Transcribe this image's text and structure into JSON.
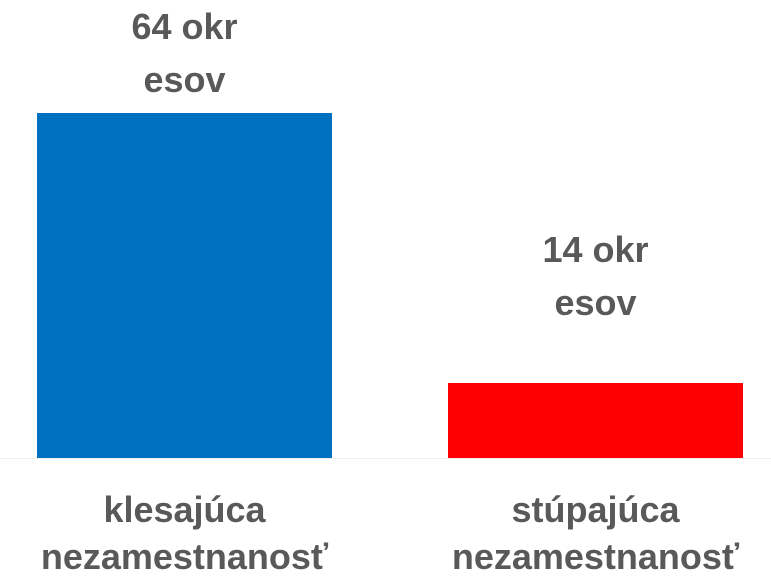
{
  "chart_data": {
    "type": "bar",
    "categories": [
      "klesajúca nezamestnanosť",
      "stúpajúca nezamestnanosť"
    ],
    "values": [
      64,
      14
    ],
    "value_labels": [
      "64 okresov",
      "14 okresov"
    ],
    "colors": [
      "#0070c0",
      "#ff0000"
    ],
    "ylim": [
      0,
      64
    ]
  }
}
